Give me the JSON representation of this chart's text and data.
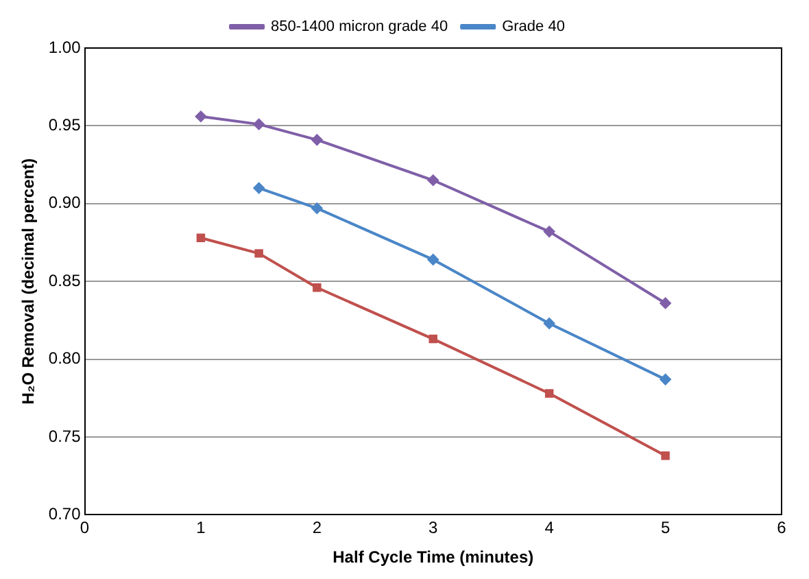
{
  "chart_data": {
    "type": "line",
    "xlabel": "Half Cycle Time (minutes)",
    "ylabel": "H₂O Removal (decimal percent)",
    "xlim": [
      0,
      6
    ],
    "xticks": [
      0,
      1,
      2,
      3,
      4,
      5,
      6
    ],
    "ylim": [
      0.7,
      1.0
    ],
    "yticks": [
      {
        "value": 0.7,
        "label": "0.70"
      },
      {
        "value": 0.75,
        "label": "0.75"
      },
      {
        "value": 0.8,
        "label": "0.80"
      },
      {
        "value": 0.85,
        "label": "0.85"
      },
      {
        "value": 0.9,
        "label": "0.90"
      },
      {
        "value": 0.95,
        "label": "0.95"
      },
      {
        "value": 1.0,
        "label": "1.00"
      }
    ],
    "grid": "y",
    "legend": "top",
    "line_style": "solid",
    "series": [
      {
        "name": "850-1400 micron grade 40",
        "color": "#7f5fa8",
        "marker": "diamond",
        "x": [
          1,
          1.5,
          2,
          3,
          4,
          5
        ],
        "values": [
          0.956,
          0.951,
          0.941,
          0.915,
          0.882,
          0.836
        ]
      },
      {
        "name": "Grade 40",
        "color": "#4a86c8",
        "marker": "diamond",
        "x": [
          1.5,
          2,
          3,
          4,
          5
        ],
        "values": [
          0.91,
          0.897,
          0.864,
          0.823,
          0.787
        ]
      },
      {
        "color": "#c0504d",
        "marker": "square",
        "x": [
          1,
          1.5,
          2,
          3,
          4,
          5
        ],
        "values": [
          0.878,
          0.868,
          0.846,
          0.813,
          0.778,
          0.738
        ]
      }
    ]
  }
}
